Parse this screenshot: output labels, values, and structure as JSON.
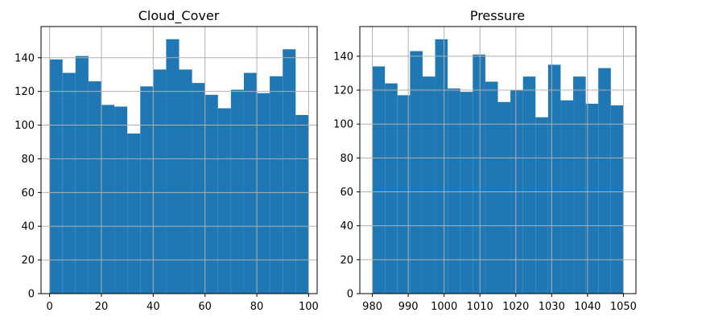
{
  "chart_data": [
    {
      "type": "bar",
      "title": "Cloud_Cover",
      "xlabel": "",
      "ylabel": "",
      "grid": true,
      "xlim": [
        -3.3,
        103.3
      ],
      "ylim": [
        0,
        158.5
      ],
      "x_ticks": [
        0,
        20,
        40,
        60,
        80,
        100
      ],
      "y_ticks": [
        0,
        20,
        40,
        60,
        80,
        100,
        120,
        140
      ],
      "bin_edges": [
        0,
        5,
        10,
        15,
        20,
        25,
        30,
        35,
        40,
        45,
        50,
        55,
        60,
        65,
        70,
        75,
        80,
        85,
        90,
        95,
        100
      ],
      "values": [
        139,
        131,
        141,
        126,
        112,
        111,
        95,
        123,
        133,
        151,
        133,
        125,
        118,
        110,
        121,
        131,
        119,
        129,
        145,
        106
      ],
      "bar_color": "#1f77b4"
    },
    {
      "type": "bar",
      "title": "Pressure",
      "xlabel": "",
      "ylabel": "",
      "grid": true,
      "xlim": [
        976.5,
        1053.5
      ],
      "ylim": [
        0,
        157.5
      ],
      "x_ticks": [
        980,
        990,
        1000,
        1010,
        1020,
        1030,
        1040,
        1050
      ],
      "y_ticks": [
        0,
        20,
        40,
        60,
        80,
        100,
        120,
        140
      ],
      "bin_edges": [
        980,
        983.5,
        987,
        990.5,
        994,
        997.5,
        1001,
        1004.5,
        1008,
        1011.5,
        1015,
        1018.5,
        1022,
        1025.5,
        1029,
        1032.5,
        1036,
        1039.5,
        1043,
        1046.5,
        1050
      ],
      "values": [
        134,
        124,
        117,
        143,
        128,
        150,
        121,
        119,
        141,
        125,
        113,
        120,
        128,
        104,
        135,
        114,
        128,
        112,
        133,
        111
      ],
      "bar_color": "#1f77b4"
    }
  ]
}
